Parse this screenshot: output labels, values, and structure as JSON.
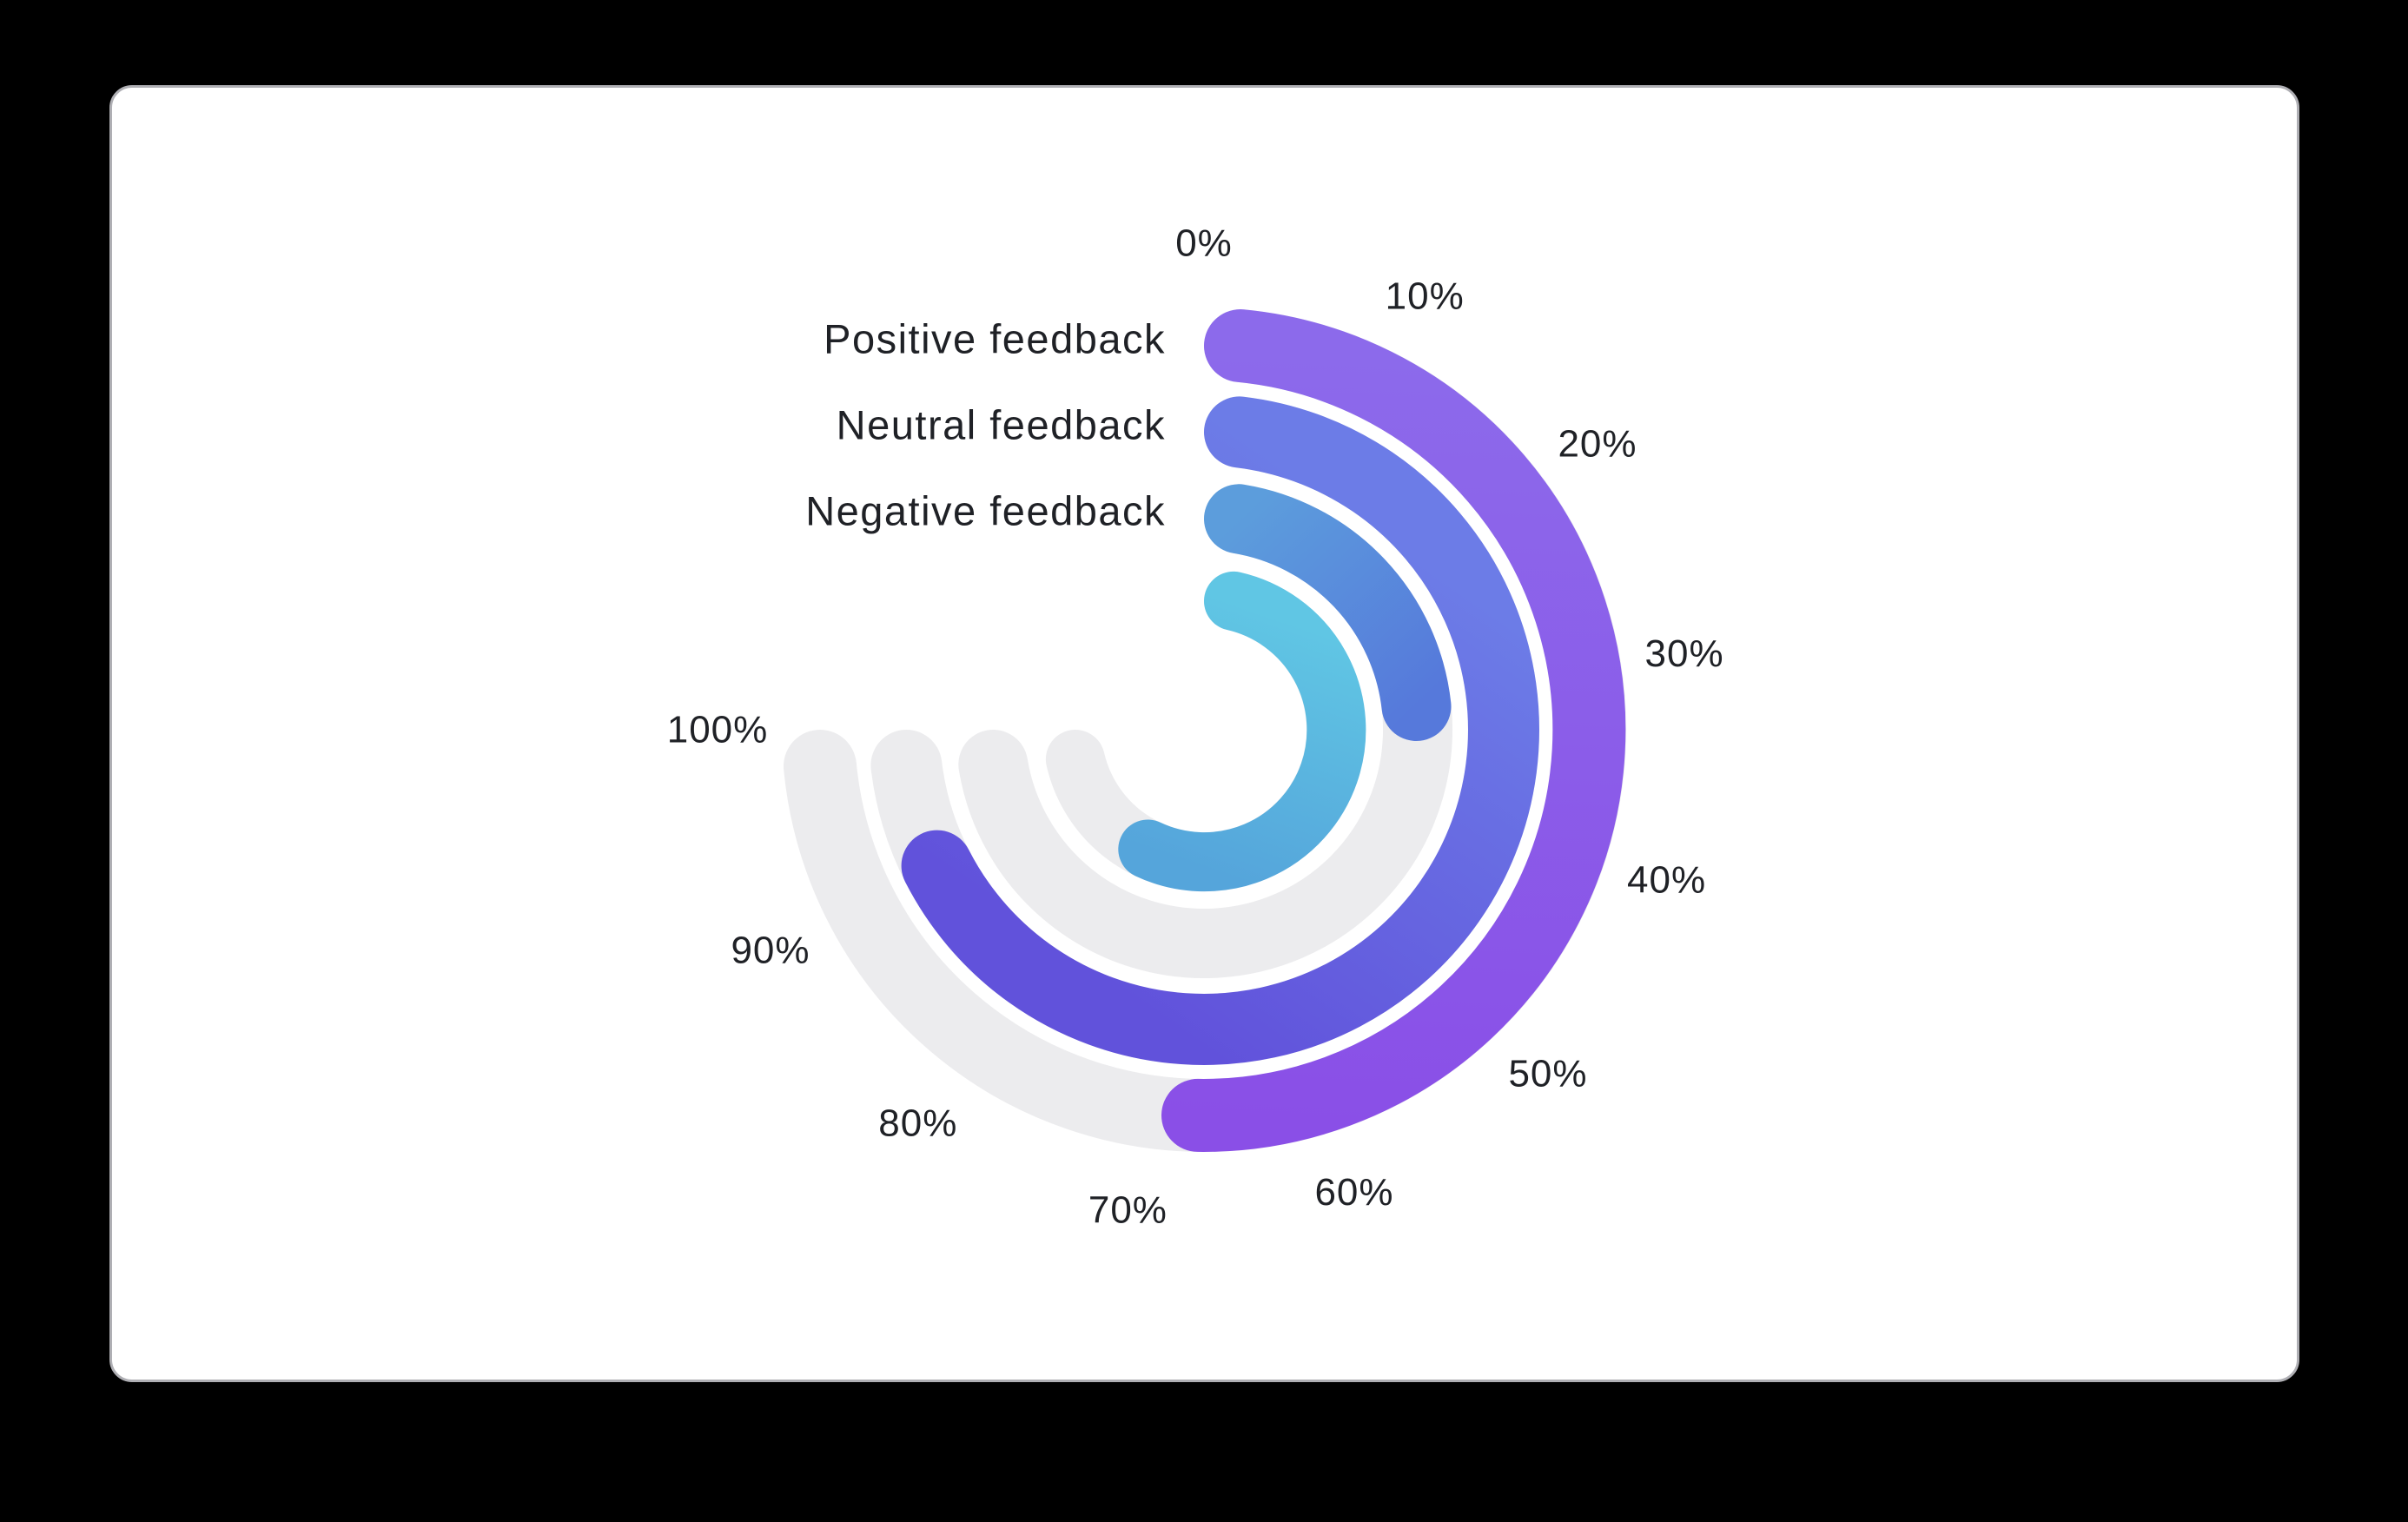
{
  "window": {
    "background_color": "#000000"
  },
  "card": {
    "background_color": "#FFFFFF",
    "border_color": "#AFAFB4"
  },
  "text_color": "#1F2126",
  "chart_data": {
    "type": "radial_bar",
    "title": "",
    "unit": "%",
    "direction": "clockwise",
    "zero_position": "top",
    "scale": {
      "min": 0,
      "max": 100,
      "tick_step": 10,
      "start_angle_deg": 0,
      "sweep_deg": 270
    },
    "axis_tick_labels": [
      "0%",
      "10%",
      "20%",
      "30%",
      "40%",
      "50%",
      "60%",
      "70%",
      "80%",
      "90%",
      "100%"
    ],
    "track_color": "#ECECEE",
    "grid": false,
    "legend_position": "left-of-arc-start",
    "series": [
      {
        "label": "Positive feedback",
        "value": 67,
        "color_start": "#8C6AEB",
        "color_end": "#8A4FE7",
        "radius": 444,
        "stroke_width": 84
      },
      {
        "label": "Neutral feedback",
        "value": 90,
        "color_start": "#6C7CE7",
        "color_end": "#6152DB",
        "radius": 345,
        "stroke_width": 82
      },
      {
        "label": "Negative feedback",
        "value": 31,
        "color_start": "#5C9DDC",
        "color_end": "#5679DB",
        "radius": 246,
        "stroke_width": 80
      },
      {
        "label": "",
        "value": 76,
        "color_start": "#60C6E4",
        "color_end": "#55A5DB",
        "radius": 152,
        "stroke_width": 68
      }
    ],
    "layout": {
      "center_x": 1386,
      "center_y": 840,
      "label_radius": 560,
      "series_label_x": 1342
    }
  }
}
